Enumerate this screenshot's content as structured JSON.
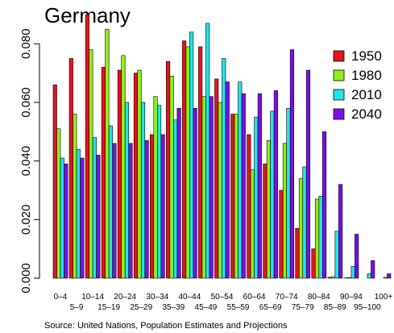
{
  "chart_data": {
    "type": "bar",
    "title": "Germany",
    "source": "Source:  United Nations, Population Estimates and Projections",
    "categories": [
      "0–4",
      "5–9",
      "10–14",
      "15–19",
      "20–24",
      "25–29",
      "30–34",
      "35–39",
      "40–44",
      "45–49",
      "50–54",
      "55–59",
      "60–64",
      "65–69",
      "70–74",
      "75–79",
      "80–84",
      "85–89",
      "90–94",
      "95–100",
      "100+"
    ],
    "series": [
      {
        "name": "1950",
        "color": "#e8121b",
        "values": [
          0.066,
          0.075,
          0.09,
          0.072,
          0.071,
          0.07,
          0.049,
          0.074,
          0.081,
          0.079,
          0.068,
          0.056,
          0.049,
          0.039,
          0.03,
          0.017,
          0.01,
          0.0003,
          0.0001,
          0.0,
          0.0
        ]
      },
      {
        "name": "1980",
        "color": "#8ef01e",
        "values": [
          0.051,
          0.056,
          0.078,
          0.085,
          0.076,
          0.071,
          0.062,
          0.069,
          0.079,
          0.062,
          0.06,
          0.056,
          0.037,
          0.047,
          0.046,
          0.034,
          0.027,
          0.0005,
          0.0002,
          0.0,
          0.0
        ]
      },
      {
        "name": "2010",
        "color": "#22e4e8",
        "values": [
          0.041,
          0.044,
          0.048,
          0.052,
          0.06,
          0.06,
          0.059,
          0.054,
          0.084,
          0.087,
          0.075,
          0.067,
          0.055,
          0.057,
          0.058,
          0.038,
          0.028,
          0.016,
          0.004,
          0.0015,
          0.0003
        ]
      },
      {
        "name": "2040",
        "color": "#7a10e8",
        "values": [
          0.039,
          0.041,
          0.042,
          0.046,
          0.046,
          0.047,
          0.049,
          0.058,
          0.058,
          0.062,
          0.067,
          0.063,
          0.063,
          0.064,
          0.078,
          0.071,
          0.05,
          0.032,
          0.015,
          0.006,
          0.0015
        ]
      }
    ],
    "ylim": [
      0,
      0.09
    ],
    "yticks": [
      "0.000",
      "0.020",
      "0.040",
      "0.060",
      "0.080"
    ],
    "ytick_values": [
      0,
      0.02,
      0.04,
      0.06,
      0.08
    ],
    "legend_position": "top-right",
    "grid": false
  }
}
